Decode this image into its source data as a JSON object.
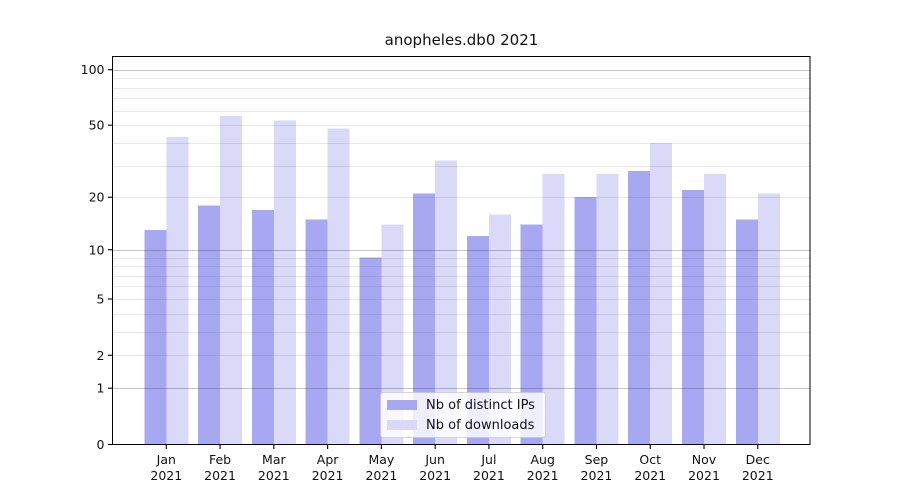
{
  "figure": {
    "background": "#ffffff",
    "plot_border_color": "#000000",
    "major_grid_color": "rgba(0,0,0,0.22)",
    "minor_grid_color": "rgba(0,0,0,0.09)",
    "tick_color": "#000000",
    "text_color": "#111111"
  },
  "chart_data": {
    "type": "bar",
    "title": "anopheles.db0 2021",
    "categories": [
      "Jan 2021",
      "Feb 2021",
      "Mar 2021",
      "Apr 2021",
      "May 2021",
      "Jun 2021",
      "Jul 2021",
      "Aug 2021",
      "Sep 2021",
      "Oct 2021",
      "Nov 2021",
      "Dec 2021"
    ],
    "series": [
      {
        "name": "Nb of distinct IPs",
        "color": "#a8a8f2",
        "values": [
          13,
          18,
          17,
          15,
          9,
          21,
          12,
          14,
          20,
          28,
          22,
          15
        ]
      },
      {
        "name": "Nb of downloads",
        "color": "#dadaf8",
        "values": [
          43,
          56,
          53,
          48,
          14,
          32,
          16,
          27,
          27,
          40,
          27,
          21
        ]
      }
    ],
    "xlabel": "",
    "ylabel": "",
    "yscale": "log1p",
    "ylim": [
      0,
      117
    ],
    "yticks": [
      0,
      1,
      2,
      5,
      10,
      20,
      50,
      100
    ],
    "major_gridlines": [
      1,
      10,
      100
    ],
    "minor_gridlines": [
      2,
      3,
      4,
      5,
      6,
      7,
      8,
      9,
      20,
      30,
      40,
      50,
      60,
      70,
      80,
      90
    ],
    "grid": "on",
    "grid_above_bars": true,
    "legend_position": "inside-bottom-center"
  }
}
